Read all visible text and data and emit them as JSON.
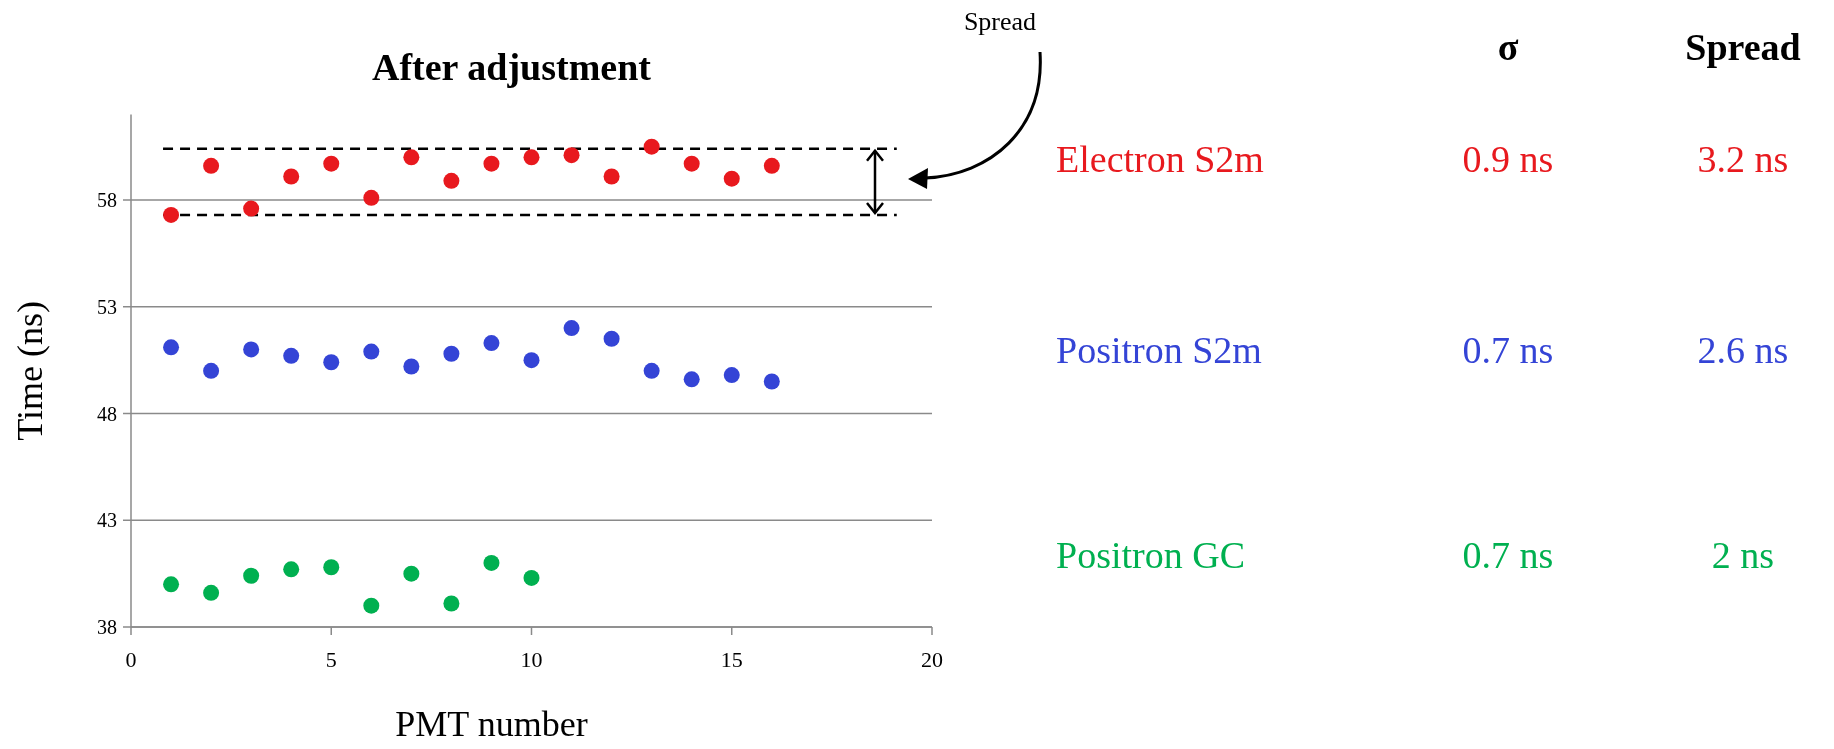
{
  "chart_data": {
    "type": "scatter",
    "title": "After adjustment",
    "xlabel": "PMT number",
    "ylabel": "Time (ns)",
    "xlim": [
      0,
      20
    ],
    "xticks": [
      0,
      5,
      10,
      15,
      20
    ],
    "ylim": [
      38,
      62
    ],
    "yticks": [
      38,
      43,
      48,
      53,
      58
    ],
    "grid": "y",
    "marker": "circle",
    "legend": "right",
    "series": [
      {
        "name": "Electron S2m",
        "color": "#e8191e",
        "x": [
          1,
          2,
          3,
          4,
          5,
          6,
          7,
          8,
          9,
          10,
          11,
          12,
          13,
          14,
          15,
          16
        ],
        "values": [
          57.3,
          59.6,
          57.6,
          59.1,
          59.7,
          58.1,
          60.0,
          58.9,
          59.7,
          60.0,
          60.1,
          59.1,
          60.5,
          59.7,
          59.0,
          59.6
        ]
      },
      {
        "name": "Positron S2m",
        "color": "#3444d6",
        "x": [
          1,
          2,
          3,
          4,
          5,
          6,
          7,
          8,
          9,
          10,
          11,
          12,
          13,
          14,
          15,
          16
        ],
        "values": [
          51.1,
          50.0,
          51.0,
          50.7,
          50.4,
          50.9,
          50.2,
          50.8,
          51.3,
          50.5,
          52.0,
          51.5,
          50.0,
          49.6,
          49.8,
          49.5
        ]
      },
      {
        "name": "Positron GC",
        "color": "#00b050",
        "x": [
          1,
          2,
          3,
          4,
          5,
          6,
          7,
          8,
          9,
          10
        ],
        "values": [
          40.0,
          39.6,
          40.4,
          40.7,
          40.8,
          39.0,
          40.5,
          39.1,
          41.0,
          40.3
        ]
      }
    ],
    "ref_lines": [
      {
        "axis": "y",
        "value": 60.4,
        "line_style": "dashed",
        "color": "#000000"
      },
      {
        "axis": "y",
        "value": 57.3,
        "line_style": "dashed",
        "color": "#000000"
      }
    ],
    "annotations": [
      "Spread",
      "σ",
      "Spread",
      "0.9 ns",
      "3.2 ns",
      "0.7 ns",
      "2.6 ns",
      "0.7 ns",
      "2 ns"
    ]
  }
}
